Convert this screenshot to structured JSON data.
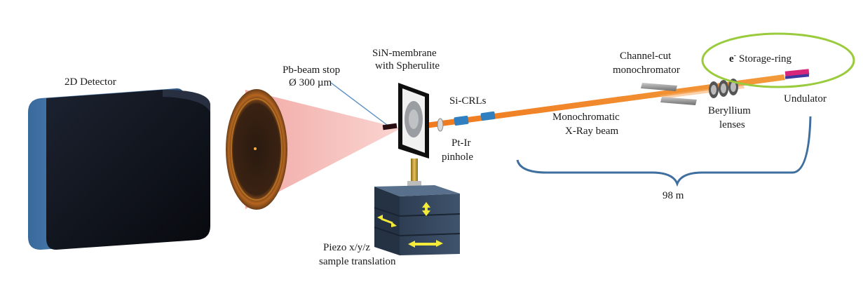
{
  "labels": {
    "detector": "2D Detector",
    "beam_stop_line1": "Pb-beam stop",
    "beam_stop_line2": "Ø 300 µm",
    "membrane_line1": "SiN-membrane",
    "membrane_line2": "with Spherulite",
    "crls": "Si-CRLs",
    "pinhole_line1": "Pt-Ir",
    "pinhole_line2": "pinhole",
    "beam_line1": "Monochromatic",
    "beam_line2": "X-Ray beam",
    "mono_line1": "Channel-cut",
    "mono_line2": "monochromator",
    "ring_prefix": "e",
    "ring_superscript": "-",
    "ring": "Storage-ring",
    "undulator": "Undulator",
    "beryllium_line1": "Beryllium",
    "beryllium_line2": "lenses",
    "distance": "98 m",
    "piezo_line1": "Piezo x/y/z",
    "piezo_line2": "sample translation"
  },
  "colors": {
    "beam": "#f08a2a",
    "cone": "#f4b0ad",
    "detector_front": "#0e1118",
    "detector_side": "#4d7fb3",
    "ring": "#9acb3c",
    "brace": "#3f6f9e",
    "piezo": "#34465c",
    "arrow": "#f4ea3a",
    "crl": "#2f7fc1"
  }
}
